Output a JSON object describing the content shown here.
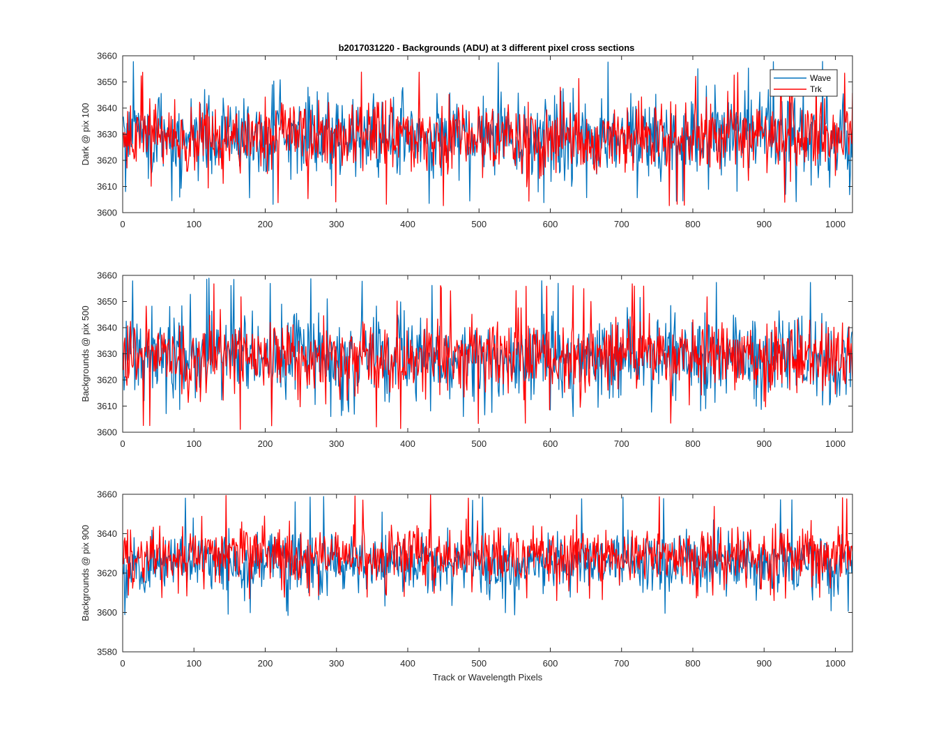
{
  "figure": {
    "title": "b2017031220 - Backgrounds (ADU) at 3 different pixel cross sections"
  },
  "legend": {
    "placement": "top-right of first subplot",
    "entries": [
      {
        "name": "Wave",
        "color": "#0072BD"
      },
      {
        "name": "Trk",
        "color": "#FF0000"
      }
    ]
  },
  "chart_data": [
    {
      "type": "line",
      "ylabel": "Dark @ pix 100",
      "xlabel": "",
      "xlim": [
        0,
        1024
      ],
      "ylim": [
        3600,
        3660
      ],
      "xticks": [
        0,
        100,
        200,
        300,
        400,
        500,
        600,
        700,
        800,
        900,
        1000
      ],
      "yticks": [
        3600,
        3610,
        3620,
        3630,
        3640,
        3650,
        3660
      ],
      "grid": false,
      "series": [
        {
          "name": "Wave",
          "color": "#0072BD",
          "n_points": 1024,
          "mean": 3629,
          "approx_std": 8,
          "observed_min": 3603,
          "observed_max": 3658
        },
        {
          "name": "Trk",
          "color": "#FF0000",
          "n_points": 1024,
          "mean": 3629,
          "approx_std": 6.5,
          "observed_min": 3602,
          "observed_max": 3654
        }
      ]
    },
    {
      "type": "line",
      "ylabel": "Backgrounds @ pix 500",
      "xlabel": "",
      "xlim": [
        0,
        1024
      ],
      "ylim": [
        3600,
        3660
      ],
      "xticks": [
        0,
        100,
        200,
        300,
        400,
        500,
        600,
        700,
        800,
        900,
        1000
      ],
      "yticks": [
        3600,
        3610,
        3620,
        3630,
        3640,
        3650,
        3660
      ],
      "grid": false,
      "series": [
        {
          "name": "Wave",
          "color": "#0072BD",
          "n_points": 1024,
          "mean": 3629,
          "approx_std": 8,
          "observed_min": 3606,
          "observed_max": 3659
        },
        {
          "name": "Trk",
          "color": "#FF0000",
          "n_points": 1024,
          "mean": 3629,
          "approx_std": 7,
          "observed_min": 3601,
          "observed_max": 3657
        }
      ]
    },
    {
      "type": "line",
      "ylabel": "Backgrounds @ pix 900",
      "xlabel": "Track or Wavelength Pixels",
      "xlim": [
        0,
        1024
      ],
      "ylim": [
        3580,
        3660
      ],
      "xticks": [
        0,
        100,
        200,
        300,
        400,
        500,
        600,
        700,
        800,
        900,
        1000
      ],
      "yticks": [
        3580,
        3600,
        3620,
        3640,
        3660
      ],
      "grid": false,
      "series": [
        {
          "name": "Wave",
          "color": "#0072BD",
          "n_points": 1024,
          "mean": 3625,
          "approx_std": 7.5,
          "observed_min": 3598,
          "observed_max": 3659
        },
        {
          "name": "Trk",
          "color": "#FF0000",
          "n_points": 1024,
          "mean": 3629,
          "approx_std": 7,
          "observed_min": 3606,
          "observed_max": 3660
        }
      ]
    }
  ]
}
